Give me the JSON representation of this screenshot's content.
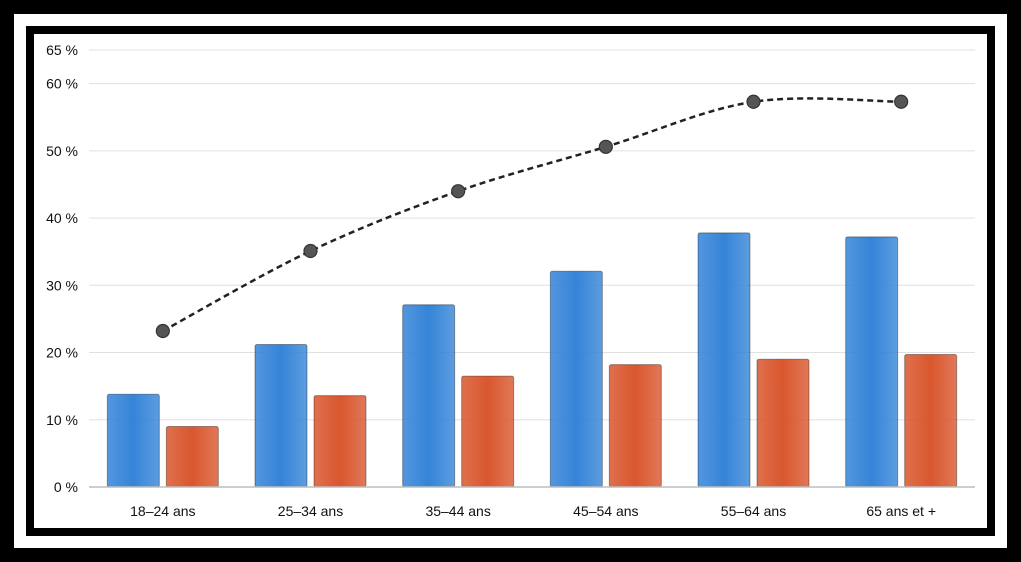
{
  "chart_data": {
    "type": "bar",
    "categories": [
      "18–24 ans",
      "25–34 ans",
      "35–44 ans",
      "45–54 ans",
      "55–64 ans",
      "65 ans et +"
    ],
    "series": [
      {
        "kind": "bar",
        "color": "#3584d8",
        "values": [
          13.8,
          21.2,
          27.1,
          32.1,
          37.8,
          37.2
        ]
      },
      {
        "kind": "bar",
        "color": "#d9572e",
        "values": [
          9.0,
          13.6,
          16.5,
          18.2,
          19.0,
          19.7
        ]
      },
      {
        "kind": "line",
        "style": "dashed",
        "color": "#222222",
        "marker_color": "#555555",
        "values": [
          23.2,
          35.1,
          44.0,
          50.6,
          57.3,
          57.3
        ]
      }
    ],
    "y_ticks": [
      {
        "value": 0,
        "label": "0 %"
      },
      {
        "value": 10,
        "label": "10 %"
      },
      {
        "value": 20,
        "label": "20 %"
      },
      {
        "value": 30,
        "label": "30 %"
      },
      {
        "value": 40,
        "label": "40 %"
      },
      {
        "value": 50,
        "label": "50 %"
      },
      {
        "value": 60,
        "label": "60 %"
      },
      {
        "value": 65,
        "label": "65 %"
      }
    ],
    "ylim": [
      0,
      65
    ],
    "grid": true,
    "legend": "none"
  }
}
